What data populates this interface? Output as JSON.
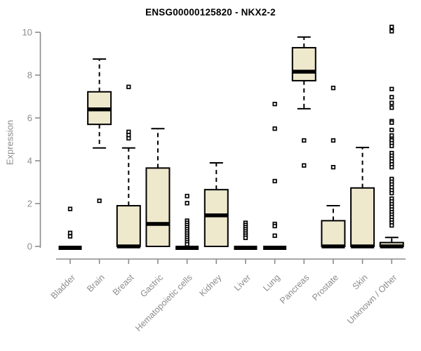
{
  "chart_data": {
    "type": "boxplot",
    "title": "ENSG00000125820 - NKX2-2",
    "xlabel": "",
    "ylabel": "Expression",
    "ylim": [
      0,
      10.4
    ],
    "yticks": [
      0,
      2,
      4,
      6,
      8,
      10
    ],
    "grid": false,
    "legend": false,
    "categories": [
      "Bladder",
      "Brain",
      "Breast",
      "Gastric",
      "Hematopoietic cells",
      "Kidney",
      "Liver",
      "Lung",
      "Pancreas",
      "Prostate",
      "Skin",
      "Unknown / Other"
    ],
    "series": [
      {
        "category": "Bladder",
        "low": 0,
        "q1": 0,
        "median": 0,
        "q3": 0,
        "high": 0,
        "outliers": [
          1.75,
          0.63,
          0.47
        ]
      },
      {
        "category": "Brain",
        "low": 4.6,
        "q1": 5.7,
        "median": 6.4,
        "q3": 7.22,
        "high": 8.75,
        "outliers": [
          2.13
        ]
      },
      {
        "category": "Breast",
        "low": 0,
        "q1": 0,
        "median": 0,
        "q3": 1.9,
        "high": 4.6,
        "outliers": [
          7.45,
          5.35,
          5.2,
          5.05
        ]
      },
      {
        "category": "Gastric",
        "low": 0,
        "q1": 0,
        "median": 1.05,
        "q3": 3.66,
        "high": 5.5,
        "outliers": []
      },
      {
        "category": "Hematopoietic cells",
        "low": 0,
        "q1": 0,
        "median": 0,
        "q3": 0,
        "high": 0,
        "outliers": [
          2.35,
          2.02,
          1.2,
          1.1,
          1.0,
          0.9,
          0.8,
          0.7,
          0.6,
          0.5,
          0.4,
          0.3,
          0.2,
          0.1
        ]
      },
      {
        "category": "Kidney",
        "low": 0,
        "q1": 0,
        "median": 1.45,
        "q3": 2.65,
        "high": 3.9,
        "outliers": []
      },
      {
        "category": "Liver",
        "low": 0,
        "q1": 0,
        "median": 0,
        "q3": 0,
        "high": 0,
        "outliers": [
          1.1,
          1.0,
          0.9,
          0.8,
          0.7,
          0.6,
          0.5,
          0.4
        ]
      },
      {
        "category": "Lung",
        "low": 0,
        "q1": 0,
        "median": 0,
        "q3": 0,
        "high": 0,
        "outliers": [
          6.65,
          5.5,
          3.05,
          1.05,
          0.95,
          0.5
        ]
      },
      {
        "category": "Pancreas",
        "low": 6.43,
        "q1": 7.74,
        "median": 8.16,
        "q3": 9.28,
        "high": 9.78,
        "outliers": [
          4.95,
          3.78
        ]
      },
      {
        "category": "Prostate",
        "low": 0,
        "q1": 0,
        "median": 0,
        "q3": 1.2,
        "high": 1.9,
        "outliers": [
          7.4,
          4.95,
          3.7
        ]
      },
      {
        "category": "Skin",
        "low": 0,
        "q1": 0,
        "median": 0,
        "q3": 2.73,
        "high": 4.62,
        "outliers": []
      },
      {
        "category": "Unknown / Other",
        "low": 0,
        "q1": 0,
        "median": 0,
        "q3": 0.18,
        "high": 0.42,
        "outliers": [
          10.25,
          10.05,
          7.35,
          6.97,
          6.7,
          6.48,
          5.85,
          5.78,
          5.44,
          5.18,
          5.02,
          4.95,
          4.82,
          4.69,
          4.36,
          4.23,
          4.1,
          3.97,
          3.83,
          3.7,
          3.15,
          3.02,
          2.89,
          2.76,
          2.62,
          2.49,
          2.23,
          2.1,
          1.97,
          1.85,
          1.72,
          1.6,
          1.48,
          1.36,
          1.23,
          1.11,
          0.98
        ]
      }
    ],
    "style": {
      "box_fill": "#EEE8CD",
      "box_stroke": "#000000",
      "median_color": "#000000",
      "outlier_fill": "#FFFFFF",
      "outlier_stroke": "#000000",
      "axis_color": "#8C8C8C",
      "title_color": "#000000",
      "background": "#FFFFFF"
    }
  }
}
